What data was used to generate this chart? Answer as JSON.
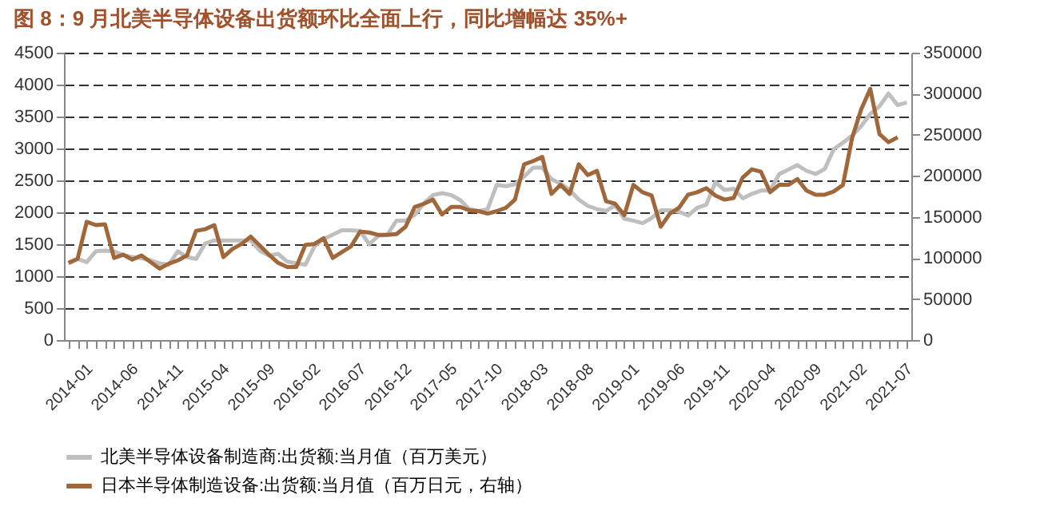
{
  "chart_data": {
    "type": "line",
    "title": "图 8：9 月北美半导体设备出货额环比全面上行，同比增幅达 35%+",
    "categories": [
      "2014-01",
      null,
      null,
      null,
      null,
      "2014-06",
      null,
      null,
      null,
      null,
      "2014-11",
      null,
      null,
      null,
      null,
      "2015-04",
      null,
      null,
      null,
      null,
      "2015-09",
      null,
      null,
      null,
      null,
      "2016-02",
      null,
      null,
      null,
      null,
      "2016-07",
      null,
      null,
      null,
      null,
      "2016-12",
      null,
      null,
      null,
      null,
      "2017-05",
      null,
      null,
      null,
      null,
      "2017-10",
      null,
      null,
      null,
      null,
      "2018-03",
      null,
      null,
      null,
      null,
      "2018-08",
      null,
      null,
      null,
      null,
      "2019-01",
      null,
      null,
      null,
      null,
      "2019-06",
      null,
      null,
      null,
      null,
      "2019-11",
      null,
      null,
      null,
      null,
      "2020-04",
      null,
      null,
      null,
      null,
      "2020-09",
      null,
      null,
      null,
      null,
      "2021-02",
      null,
      null,
      null,
      null,
      "2021-07",
      null,
      null
    ],
    "series": [
      {
        "name": "北美半导体设备制造商:出货额:当月值（百万美元）",
        "color": "#bfbfbf",
        "values": [
          1200,
          1270,
          1220,
          1390,
          1400,
          1390,
          1330,
          1300,
          1280,
          1250,
          1200,
          1180,
          1390,
          1300,
          1270,
          1510,
          1560,
          1560,
          1560,
          1560,
          1560,
          1400,
          1320,
          1350,
          1230,
          1200,
          1180,
          1470,
          1580,
          1650,
          1720,
          1720,
          1710,
          1500,
          1630,
          1650,
          1870,
          1870,
          1960,
          2140,
          2270,
          2300,
          2270,
          2190,
          2050,
          2020,
          2050,
          2430,
          2410,
          2440,
          2560,
          2700,
          2700,
          2520,
          2450,
          2350,
          2200,
          2100,
          2050,
          2020,
          2110,
          1900,
          1870,
          1830,
          1910,
          2030,
          2030,
          2010,
          1950,
          2070,
          2120,
          2470,
          2350,
          2370,
          2220,
          2290,
          2340,
          2340,
          2600,
          2670,
          2740,
          2650,
          2600,
          2680,
          2990,
          3090,
          3200,
          3350,
          3540,
          3660,
          3860,
          3680,
          3720
        ]
      },
      {
        "name": "日本半导体制造设备:出货额:当月值（百万日元，右轴）",
        "color": "#a0673a",
        "axis": "y2",
        "values": [
          94000,
          99000,
          144000,
          140000,
          141000,
          100000,
          104000,
          98000,
          103000,
          95000,
          87000,
          93000,
          97000,
          103000,
          133000,
          135000,
          140000,
          101000,
          111000,
          117000,
          126000,
          115000,
          104000,
          94000,
          89000,
          89000,
          116000,
          117000,
          124000,
          100000,
          107000,
          114000,
          132000,
          131000,
          128000,
          128000,
          129000,
          138000,
          162000,
          166000,
          171000,
          153000,
          162000,
          162000,
          158000,
          157000,
          154000,
          157000,
          161000,
          171000,
          214000,
          218000,
          223000,
          178000,
          189000,
          178000,
          214000,
          201000,
          206000,
          169000,
          166000,
          152000,
          189000,
          180000,
          176000,
          138000,
          154000,
          161000,
          177000,
          180000,
          185000,
          176000,
          171000,
          173000,
          198000,
          208000,
          205000,
          180000,
          189000,
          189000,
          196000,
          182000,
          177000,
          177000,
          181000,
          189000,
          246000,
          281000,
          306000,
          251000,
          241000,
          247000,
          null
        ]
      }
    ],
    "ylim": [
      0,
      4500
    ],
    "yticks": [
      0,
      500,
      1000,
      1500,
      2000,
      2500,
      3000,
      3500,
      4000,
      4500
    ],
    "y2lim": [
      0,
      350000
    ],
    "y2ticks": [
      0,
      50000,
      100000,
      150000,
      200000,
      250000,
      300000,
      350000
    ],
    "grid": "y",
    "legend": "bottom",
    "marker": "none",
    "line_style": "solid"
  }
}
